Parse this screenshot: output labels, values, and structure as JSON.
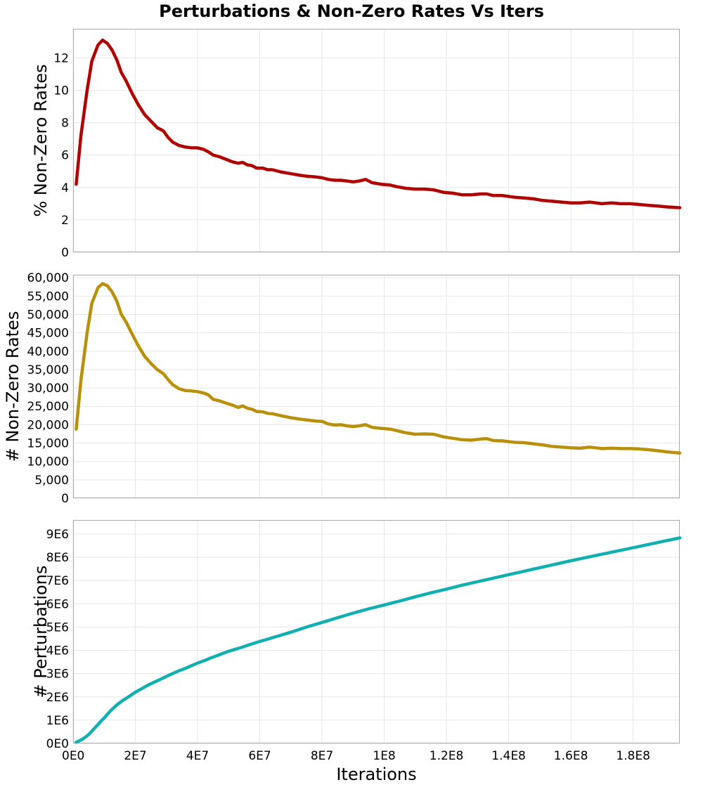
{
  "title": "Perturbations & Non-Zero Rates Vs Iters",
  "chart_data": [
    {
      "type": "line",
      "name": "pct",
      "ylabel": "% Non-Zero Rates",
      "xlabel": "",
      "color": "#b00000",
      "grid": true,
      "xlim": [
        0,
        195000000
      ],
      "ylim": [
        0,
        13.8
      ],
      "yticks": [
        0,
        2,
        4,
        6,
        8,
        10,
        12
      ],
      "ytick_labels": [
        "0",
        "2",
        "4",
        "6",
        "8",
        "10",
        "12"
      ],
      "xticks": [
        0,
        20000000,
        40000000,
        60000000,
        80000000,
        100000000,
        120000000,
        140000000,
        160000000,
        180000000
      ],
      "xtick_labels": [],
      "x": [
        1000000,
        2500000,
        4500000,
        6000000,
        8000000,
        9500000,
        11000000,
        12500000,
        14000000,
        15500000,
        17000000,
        19000000,
        21000000,
        23000000,
        25000000,
        27000000,
        29000000,
        30500000,
        32000000,
        34000000,
        36000000,
        38000000,
        40000000,
        42000000,
        43500000,
        45000000,
        47000000,
        49000000,
        51000000,
        53000000,
        54500000,
        56000000,
        57500000,
        59000000,
        61000000,
        62500000,
        64000000,
        67000000,
        70000000,
        73000000,
        75000000,
        78000000,
        80000000,
        82000000,
        84000000,
        86000000,
        88000000,
        90000000,
        92000000,
        94000000,
        96000000,
        99000000,
        102000000,
        104000000,
        107000000,
        110000000,
        113000000,
        116000000,
        119000000,
        122000000,
        125000000,
        128000000,
        131000000,
        133000000,
        135000000,
        138000000,
        140000000,
        142000000,
        145000000,
        148000000,
        151000000,
        154000000,
        157000000,
        160000000,
        163000000,
        166000000,
        168000000,
        170000000,
        173000000,
        176000000,
        179000000,
        182000000,
        185000000,
        188000000,
        191000000,
        195000000
      ],
      "values": [
        4.2,
        7.2,
        10.0,
        11.8,
        12.8,
        13.1,
        12.9,
        12.5,
        11.9,
        11.1,
        10.6,
        9.8,
        9.1,
        8.5,
        8.1,
        7.7,
        7.5,
        7.1,
        6.8,
        6.6,
        6.5,
        6.45,
        6.45,
        6.35,
        6.2,
        6.0,
        5.9,
        5.75,
        5.6,
        5.5,
        5.55,
        5.4,
        5.35,
        5.2,
        5.2,
        5.1,
        5.1,
        4.95,
        4.85,
        4.75,
        4.7,
        4.65,
        4.6,
        4.5,
        4.45,
        4.45,
        4.4,
        4.35,
        4.4,
        4.5,
        4.3,
        4.2,
        4.15,
        4.05,
        3.95,
        3.9,
        3.9,
        3.85,
        3.7,
        3.65,
        3.55,
        3.55,
        3.6,
        3.6,
        3.5,
        3.5,
        3.45,
        3.4,
        3.35,
        3.3,
        3.2,
        3.15,
        3.1,
        3.05,
        3.05,
        3.1,
        3.05,
        3.0,
        3.05,
        3.0,
        3.0,
        2.95,
        2.9,
        2.85,
        2.8,
        2.75
      ]
    },
    {
      "type": "line",
      "name": "count",
      "ylabel": "# Non-Zero Rates",
      "xlabel": "",
      "color": "#b8900a",
      "grid": true,
      "xlim": [
        0,
        195000000
      ],
      "ylim": [
        0,
        60800
      ],
      "yticks": [
        0,
        5000,
        10000,
        15000,
        20000,
        25000,
        30000,
        35000,
        40000,
        45000,
        50000,
        55000,
        60000
      ],
      "ytick_labels": [
        "0",
        "5,000",
        "10,000",
        "15,000",
        "20,000",
        "25,000",
        "30,000",
        "35,000",
        "40,000",
        "45,000",
        "50,000",
        "55,000",
        "60,000"
      ],
      "xticks": [
        0,
        20000000,
        40000000,
        60000000,
        80000000,
        100000000,
        120000000,
        140000000,
        160000000,
        180000000
      ],
      "xtick_labels": [],
      "x": [
        1000000,
        2500000,
        4500000,
        6000000,
        8000000,
        9500000,
        11000000,
        12500000,
        14000000,
        15500000,
        17000000,
        19000000,
        21000000,
        23000000,
        25000000,
        27000000,
        29000000,
        30500000,
        32000000,
        34000000,
        36000000,
        38000000,
        40000000,
        42000000,
        43500000,
        45000000,
        47000000,
        49000000,
        51000000,
        53000000,
        54500000,
        56000000,
        57500000,
        59000000,
        61000000,
        62500000,
        64000000,
        67000000,
        70000000,
        73000000,
        75000000,
        78000000,
        80000000,
        82000000,
        84000000,
        86000000,
        88000000,
        90000000,
        92000000,
        94000000,
        96000000,
        99000000,
        102000000,
        104000000,
        107000000,
        110000000,
        113000000,
        116000000,
        119000000,
        122000000,
        125000000,
        128000000,
        131000000,
        133000000,
        135000000,
        138000000,
        140000000,
        142000000,
        145000000,
        148000000,
        151000000,
        154000000,
        157000000,
        160000000,
        163000000,
        166000000,
        168000000,
        170000000,
        173000000,
        176000000,
        179000000,
        182000000,
        185000000,
        188000000,
        191000000,
        195000000
      ],
      "values": [
        18800,
        32000,
        45000,
        53000,
        57300,
        58400,
        57800,
        56200,
        53700,
        50000,
        48000,
        44600,
        41400,
        38600,
        36700,
        35000,
        33900,
        32300,
        30900,
        29800,
        29300,
        29200,
        29000,
        28600,
        28100,
        26900,
        26500,
        25900,
        25400,
        24700,
        25100,
        24500,
        24200,
        23600,
        23500,
        23100,
        23000,
        22400,
        21900,
        21500,
        21300,
        21000,
        20900,
        20200,
        19900,
        20000,
        19700,
        19500,
        19700,
        20000,
        19300,
        19000,
        18800,
        18400,
        17800,
        17400,
        17500,
        17400,
        16700,
        16300,
        15900,
        15800,
        16100,
        16200,
        15700,
        15600,
        15400,
        15200,
        15100,
        14800,
        14500,
        14100,
        13900,
        13700,
        13600,
        13900,
        13700,
        13500,
        13600,
        13500,
        13500,
        13400,
        13200,
        12900,
        12600,
        12300
      ]
    },
    {
      "type": "line",
      "name": "perturb",
      "ylabel": "# Perturbations",
      "xlabel": "Iterations",
      "color": "#10b0b0",
      "grid": true,
      "xlim": [
        0,
        195000000
      ],
      "ylim": [
        0,
        9600000
      ],
      "yticks": [
        0,
        1000000,
        2000000,
        3000000,
        4000000,
        5000000,
        6000000,
        7000000,
        8000000,
        9000000
      ],
      "ytick_labels": [
        "0E0",
        "1E6",
        "2E6",
        "3E6",
        "4E6",
        "5E6",
        "6E6",
        "7E6",
        "8E6",
        "9E6"
      ],
      "xticks": [
        0,
        20000000,
        40000000,
        60000000,
        80000000,
        100000000,
        120000000,
        140000000,
        160000000,
        180000000
      ],
      "xtick_labels": [
        "0E0",
        "2E7",
        "4E7",
        "6E7",
        "8E7",
        "1E8",
        "1.2E8",
        "1.4E8",
        "1.6E8",
        "1.8E8"
      ],
      "x": [
        1000000,
        3000000,
        5000000,
        7000000,
        9000000,
        10000000,
        12000000,
        14000000,
        16000000,
        18000000,
        20000000,
        22000000,
        24000000,
        26000000,
        28000000,
        30000000,
        32000000,
        34000000,
        36000000,
        38000000,
        40000000,
        42000000,
        44000000,
        46000000,
        48000000,
        50000000,
        52000000,
        54000000,
        56000000,
        58000000,
        60000000,
        62000000,
        64000000,
        66000000,
        68000000,
        70000000,
        75000000,
        80000000,
        85000000,
        90000000,
        95000000,
        100000000,
        105000000,
        110000000,
        115000000,
        120000000,
        125000000,
        130000000,
        135000000,
        140000000,
        145000000,
        150000000,
        155000000,
        160000000,
        165000000,
        170000000,
        175000000,
        180000000,
        185000000,
        190000000,
        195000000
      ],
      "values": [
        50000,
        180000,
        380000,
        670000,
        960000,
        1100000,
        1400000,
        1650000,
        1850000,
        2020000,
        2200000,
        2350000,
        2500000,
        2630000,
        2750000,
        2880000,
        3000000,
        3120000,
        3220000,
        3340000,
        3450000,
        3550000,
        3660000,
        3760000,
        3860000,
        3960000,
        4040000,
        4120000,
        4210000,
        4300000,
        4380000,
        4460000,
        4540000,
        4620000,
        4700000,
        4780000,
        5000000,
        5200000,
        5400000,
        5600000,
        5780000,
        5950000,
        6120000,
        6300000,
        6470000,
        6630000,
        6800000,
        6950000,
        7100000,
        7250000,
        7400000,
        7550000,
        7700000,
        7850000,
        7990000,
        8130000,
        8270000,
        8410000,
        8550000,
        8690000,
        8830000
      ]
    }
  ]
}
